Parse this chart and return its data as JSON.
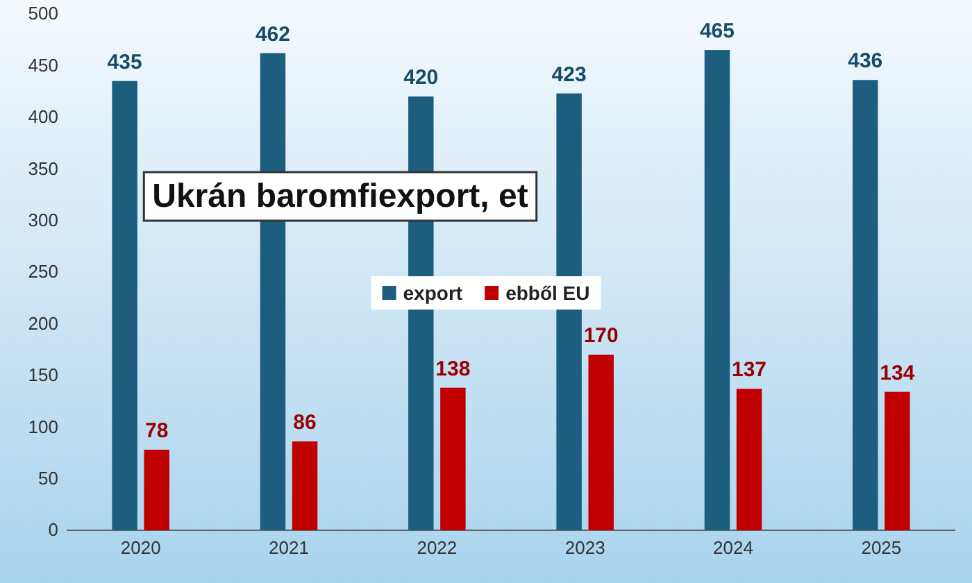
{
  "chart_data": {
    "type": "bar",
    "title": "Ukrán baromfiexport, et",
    "categories": [
      "2020",
      "2021",
      "2022",
      "2023",
      "2024",
      "2025"
    ],
    "series": [
      {
        "name": "export",
        "color": "#1d5e7e",
        "values": [
          435,
          462,
          420,
          423,
          465,
          436
        ]
      },
      {
        "name": "ebből EU",
        "color": "#c00000",
        "values": [
          78,
          86,
          138,
          170,
          137,
          134
        ]
      }
    ],
    "ylim": [
      0,
      500
    ],
    "yticks": [
      0,
      50,
      100,
      150,
      200,
      250,
      300,
      350,
      400,
      450,
      500
    ],
    "grid": false,
    "legend": "center",
    "data_labels": true
  }
}
